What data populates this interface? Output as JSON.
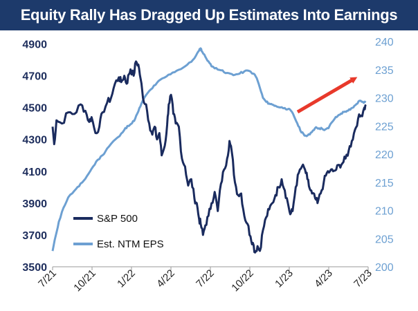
{
  "chart_data": {
    "type": "line",
    "title": "Equity Rally Has Dragged Up Estimates Into Earnings",
    "x_ticks": [
      "7/21",
      "10/21",
      "1/22",
      "4/22",
      "7/22",
      "10/22",
      "1/23",
      "4/23",
      "7/23"
    ],
    "y_left": {
      "ticks": [
        3500,
        3700,
        3900,
        4100,
        4300,
        4500,
        4700,
        4900
      ],
      "range": [
        3500,
        4950
      ]
    },
    "y_right": {
      "ticks": [
        200,
        205,
        210,
        215,
        220,
        225,
        230,
        235,
        240
      ],
      "range": [
        200,
        241
      ]
    },
    "series": [
      {
        "name": "S&P 500",
        "axis": "left",
        "color": "#1a2b5e",
        "points": [
          [
            0,
            4380
          ],
          [
            0.02,
            4270
          ],
          [
            0.05,
            4420
          ],
          [
            0.12,
            4400
          ],
          [
            0.2,
            4470
          ],
          [
            0.28,
            4460
          ],
          [
            0.36,
            4520
          ],
          [
            0.42,
            4480
          ],
          [
            0.47,
            4410
          ],
          [
            0.5,
            4440
          ],
          [
            0.55,
            4340
          ],
          [
            0.6,
            4380
          ],
          [
            0.64,
            4470
          ],
          [
            0.7,
            4530
          ],
          [
            0.75,
            4560
          ],
          [
            0.8,
            4650
          ],
          [
            0.85,
            4690
          ],
          [
            0.88,
            4660
          ],
          [
            0.92,
            4700
          ],
          [
            0.95,
            4650
          ],
          [
            0.98,
            4710
          ],
          [
            1.0,
            4740
          ],
          [
            1.04,
            4700
          ],
          [
            1.07,
            4790
          ],
          [
            1.1,
            4770
          ],
          [
            1.13,
            4680
          ],
          [
            1.16,
            4560
          ],
          [
            1.2,
            4520
          ],
          [
            1.24,
            4400
          ],
          [
            1.28,
            4330
          ],
          [
            1.31,
            4380
          ],
          [
            1.34,
            4300
          ],
          [
            1.37,
            4340
          ],
          [
            1.4,
            4200
          ],
          [
            1.44,
            4260
          ],
          [
            1.47,
            4390
          ],
          [
            1.49,
            4520
          ],
          [
            1.52,
            4580
          ],
          [
            1.55,
            4460
          ],
          [
            1.58,
            4400
          ],
          [
            1.62,
            4380
          ],
          [
            1.66,
            4180
          ],
          [
            1.7,
            4130
          ],
          [
            1.74,
            4010
          ],
          [
            1.78,
            4050
          ],
          [
            1.82,
            3930
          ],
          [
            1.85,
            3900
          ],
          [
            1.88,
            3800
          ],
          [
            1.9,
            3770
          ],
          [
            1.93,
            3700
          ],
          [
            1.96,
            3760
          ],
          [
            2.0,
            3820
          ],
          [
            2.04,
            3900
          ],
          [
            2.08,
            3970
          ],
          [
            2.12,
            3850
          ],
          [
            2.16,
            4020
          ],
          [
            2.2,
            4110
          ],
          [
            2.24,
            4180
          ],
          [
            2.27,
            4290
          ],
          [
            2.3,
            4220
          ],
          [
            2.34,
            4030
          ],
          [
            2.38,
            3950
          ],
          [
            2.42,
            3960
          ],
          [
            2.46,
            3820
          ],
          [
            2.5,
            3770
          ],
          [
            2.54,
            3690
          ],
          [
            2.57,
            3650
          ],
          [
            2.6,
            3590
          ],
          [
            2.63,
            3630
          ],
          [
            2.66,
            3600
          ],
          [
            2.7,
            3730
          ],
          [
            2.74,
            3810
          ],
          [
            2.78,
            3860
          ],
          [
            2.82,
            3900
          ],
          [
            2.86,
            3950
          ],
          [
            2.9,
            4000
          ],
          [
            2.94,
            4050
          ],
          [
            2.98,
            3980
          ],
          [
            3.02,
            3900
          ],
          [
            3.05,
            3830
          ],
          [
            3.08,
            3850
          ],
          [
            3.12,
            4000
          ],
          [
            3.16,
            4090
          ],
          [
            3.2,
            4130
          ],
          [
            3.24,
            4110
          ],
          [
            3.27,
            4050
          ],
          [
            3.3,
            3990
          ],
          [
            3.33,
            3960
          ],
          [
            3.37,
            3930
          ],
          [
            3.4,
            3900
          ],
          [
            3.44,
            3960
          ],
          [
            3.48,
            4030
          ],
          [
            3.52,
            4090
          ],
          [
            3.56,
            4100
          ],
          [
            3.6,
            4100
          ],
          [
            3.64,
            4110
          ],
          [
            3.68,
            4140
          ],
          [
            3.72,
            4150
          ],
          [
            3.76,
            4180
          ],
          [
            3.8,
            4230
          ],
          [
            3.84,
            4290
          ],
          [
            3.88,
            4360
          ],
          [
            3.92,
            4430
          ],
          [
            3.96,
            4450
          ],
          [
            4.0,
            4500
          ],
          [
            4.02,
            4510
          ]
        ]
      },
      {
        "name": "Est. NTM EPS",
        "axis": "right",
        "color": "#6da0d2",
        "points": [
          [
            0,
            202.8
          ],
          [
            0.04,
            205.5
          ],
          [
            0.08,
            208
          ],
          [
            0.14,
            210.5
          ],
          [
            0.2,
            212.3
          ],
          [
            0.28,
            213.5
          ],
          [
            0.34,
            214.3
          ],
          [
            0.4,
            215.3
          ],
          [
            0.46,
            216.5
          ],
          [
            0.52,
            217.8
          ],
          [
            0.58,
            219
          ],
          [
            0.64,
            219.8
          ],
          [
            0.7,
            221
          ],
          [
            0.78,
            222.3
          ],
          [
            0.86,
            223.2
          ],
          [
            0.92,
            224.3
          ],
          [
            0.96,
            225
          ],
          [
            1.02,
            225.5
          ],
          [
            1.06,
            226.3
          ],
          [
            1.1,
            227.6
          ],
          [
            1.14,
            229
          ],
          [
            1.2,
            230.5
          ],
          [
            1.26,
            231.5
          ],
          [
            1.32,
            232.3
          ],
          [
            1.38,
            233.2
          ],
          [
            1.46,
            233.8
          ],
          [
            1.54,
            234.5
          ],
          [
            1.62,
            235
          ],
          [
            1.7,
            235.6
          ],
          [
            1.78,
            236.4
          ],
          [
            1.84,
            237.5
          ],
          [
            1.88,
            238.4
          ],
          [
            1.9,
            238.8
          ],
          [
            1.92,
            238.2
          ],
          [
            1.96,
            237.3
          ],
          [
            2.0,
            236.5
          ],
          [
            2.04,
            235.6
          ],
          [
            2.1,
            235.3
          ],
          [
            2.16,
            234.9
          ],
          [
            2.22,
            234.4
          ],
          [
            2.28,
            234.3
          ],
          [
            2.34,
            234.1
          ],
          [
            2.4,
            234.3
          ],
          [
            2.46,
            234.7
          ],
          [
            2.52,
            234.8
          ],
          [
            2.58,
            234.3
          ],
          [
            2.62,
            233.5
          ],
          [
            2.66,
            231.8
          ],
          [
            2.7,
            230
          ],
          [
            2.74,
            229.3
          ],
          [
            2.78,
            229
          ],
          [
            2.82,
            228.8
          ],
          [
            2.86,
            228.6
          ],
          [
            2.92,
            228.3
          ],
          [
            2.98,
            228.2
          ],
          [
            3.02,
            228
          ],
          [
            3.06,
            227.7
          ],
          [
            3.1,
            226.7
          ],
          [
            3.14,
            225.5
          ],
          [
            3.18,
            224.2
          ],
          [
            3.22,
            223.6
          ],
          [
            3.26,
            223.2
          ],
          [
            3.3,
            223.5
          ],
          [
            3.34,
            224.2
          ],
          [
            3.38,
            224.8
          ],
          [
            3.42,
            224.6
          ],
          [
            3.46,
            224.5
          ],
          [
            3.5,
            224.4
          ],
          [
            3.54,
            224.6
          ],
          [
            3.58,
            225.6
          ],
          [
            3.62,
            226.3
          ],
          [
            3.66,
            226.8
          ],
          [
            3.7,
            227.2
          ],
          [
            3.74,
            227.5
          ],
          [
            3.78,
            227.7
          ],
          [
            3.82,
            227.9
          ],
          [
            3.86,
            228.3
          ],
          [
            3.9,
            228.9
          ],
          [
            3.94,
            229.5
          ],
          [
            3.98,
            229.3
          ],
          [
            4.02,
            229.2
          ]
        ]
      }
    ],
    "annotation": "red arrow pointing up-right",
    "legend": [
      {
        "label": "S&P 500",
        "color": "#1a2b5e"
      },
      {
        "label": "Est. NTM EPS",
        "color": "#6da0d2"
      }
    ]
  },
  "colors": {
    "title_bg": "#1d3a6b",
    "arrow": "#e8392b",
    "left_axis": "#1d2d5c",
    "right_axis": "#6da0d2"
  }
}
